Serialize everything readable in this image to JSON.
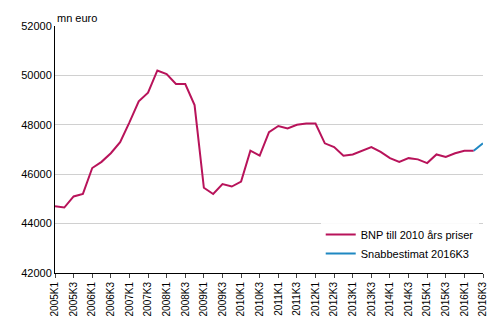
{
  "chart_data": {
    "type": "line",
    "y_label": "mn euro",
    "categories": [
      "2005K1",
      null,
      "2005K3",
      null,
      "2006K1",
      null,
      "2006K3",
      null,
      "2007K1",
      null,
      "2007K3",
      null,
      "2008K1",
      null,
      "2008K3",
      null,
      "2009K1",
      null,
      "2009K3",
      null,
      "2010K1",
      null,
      "2010K3",
      null,
      "2011K1",
      null,
      "2011K3",
      null,
      "2012K1",
      null,
      "2012K3",
      null,
      "2013K1",
      null,
      "2013K3",
      null,
      "2014K1",
      null,
      "2014K3",
      null,
      "2015K1",
      null,
      "2015K3",
      null,
      "2016K1",
      null,
      "2016K3"
    ],
    "series": [
      {
        "name": "BNP till 2010 års priser",
        "color": "#b8135a",
        "values": [
          44700,
          44650,
          45100,
          45200,
          46250,
          46500,
          46850,
          47300,
          48100,
          48950,
          49300,
          50200,
          50050,
          49650,
          49650,
          48800,
          45450,
          45200,
          45600,
          45500,
          45700,
          46950,
          46750,
          47700,
          47950,
          47850,
          48000,
          48050,
          48050,
          47250,
          47100,
          46750,
          46800,
          46950,
          47100,
          46900,
          46650,
          46500,
          46650,
          46600,
          46450,
          46800,
          46700,
          46850,
          46950,
          46950,
          null
        ]
      },
      {
        "name": "Snabbestimat 2016K3",
        "color": "#1f88c2",
        "values": [
          null,
          null,
          null,
          null,
          null,
          null,
          null,
          null,
          null,
          null,
          null,
          null,
          null,
          null,
          null,
          null,
          null,
          null,
          null,
          null,
          null,
          null,
          null,
          null,
          null,
          null,
          null,
          null,
          null,
          null,
          null,
          null,
          null,
          null,
          null,
          null,
          null,
          null,
          null,
          null,
          null,
          null,
          null,
          null,
          null,
          46950,
          47250
        ]
      }
    ],
    "ylim": [
      42000,
      52000
    ],
    "yticks": [
      42000,
      44000,
      46000,
      48000,
      50000,
      52000
    ],
    "grid": true,
    "legend": "lower right"
  }
}
